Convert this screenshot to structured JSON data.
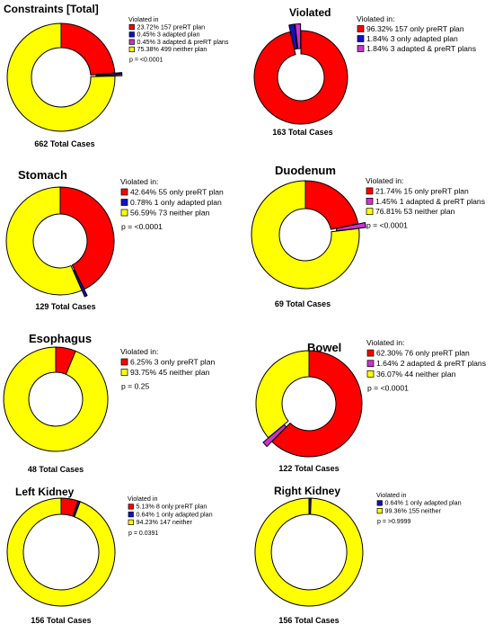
{
  "colors": {
    "red": "#ff0000",
    "blue": "#1010c8",
    "magenta": "#cc33cc",
    "yellow": "#ffff00",
    "stroke": "#000000"
  },
  "chart_data": [
    {
      "type": "pie",
      "title": "Constraints [Total]",
      "total_label": "662 Total Cases",
      "legend_title": "Violated in",
      "p_value": "p = <0.0001",
      "slices": [
        {
          "pct": 23.72,
          "pct_label": "23.72%",
          "text": "157 preRT plan",
          "color": "red",
          "explode": false
        },
        {
          "pct": 0.45,
          "pct_label": "0.45%",
          "text": "3 adapted plan",
          "color": "blue",
          "explode": true
        },
        {
          "pct": 0.45,
          "pct_label": "0.45%",
          "text": "3 adapted & preRT plans",
          "color": "magenta",
          "explode": true
        },
        {
          "pct": 75.38,
          "pct_label": "75.38%",
          "text": "499 neither plan",
          "color": "yellow",
          "explode": false
        }
      ]
    },
    {
      "type": "pie",
      "title": "Violated",
      "total_label": "163 Total Cases",
      "legend_title": "Violated in:",
      "p_value": "",
      "slices": [
        {
          "pct": 96.32,
          "pct_label": "96.32%",
          "text": "157 only preRT plan",
          "color": "red",
          "explode": false
        },
        {
          "pct": 1.84,
          "pct_label": "1.84%",
          "text": "3 only adapted plan",
          "color": "blue",
          "explode": true
        },
        {
          "pct": 1.84,
          "pct_label": "1.84%",
          "text": "3 adapted & preRT plans",
          "color": "magenta",
          "explode": true
        }
      ]
    },
    {
      "type": "pie",
      "title": "Stomach",
      "total_label": "129 Total Cases",
      "legend_title": "Violated in:",
      "p_value": "p = <0.0001",
      "slices": [
        {
          "pct": 42.64,
          "pct_label": "42.64%",
          "text": "55 only preRT plan",
          "color": "red",
          "explode": false
        },
        {
          "pct": 0.78,
          "pct_label": "0.78%",
          "text": "1 only adapted plan",
          "color": "blue",
          "explode": true
        },
        {
          "pct": 56.59,
          "pct_label": "56.59%",
          "text": "73 neither plan",
          "color": "yellow",
          "explode": false
        }
      ]
    },
    {
      "type": "pie",
      "title": "Duodenum",
      "total_label": "69 Total Cases",
      "legend_title": "Violated in:",
      "p_value": "p = <0.0001",
      "slices": [
        {
          "pct": 21.74,
          "pct_label": "21.74%",
          "text": "15 only preRT plan",
          "color": "red",
          "explode": false
        },
        {
          "pct": 1.45,
          "pct_label": "1.45%",
          "text": "1 adapted & preRT plans",
          "color": "magenta",
          "explode": true
        },
        {
          "pct": 76.81,
          "pct_label": "76.81%",
          "text": "53 neither plan",
          "color": "yellow",
          "explode": false
        }
      ]
    },
    {
      "type": "pie",
      "title": "Esophagus",
      "total_label": "48 Total Cases",
      "legend_title": "Violated in:",
      "p_value": "p = 0.25",
      "slices": [
        {
          "pct": 6.25,
          "pct_label": "6.25%",
          "text": "3 only preRT plan",
          "color": "red",
          "explode": false
        },
        {
          "pct": 93.75,
          "pct_label": "93.75%",
          "text": "45 neither plan",
          "color": "yellow",
          "explode": false
        }
      ]
    },
    {
      "type": "pie",
      "title": "Bowel",
      "total_label": "122 Total Cases",
      "legend_title": "Violated in:",
      "p_value": "p = <0.0001",
      "slices": [
        {
          "pct": 62.3,
          "pct_label": "62.30%",
          "text": "76 only preRT plan",
          "color": "red",
          "explode": false
        },
        {
          "pct": 1.64,
          "pct_label": "1.64%",
          "text": "2 adapted & preRT plans",
          "color": "magenta",
          "explode": true
        },
        {
          "pct": 36.07,
          "pct_label": "36.07%",
          "text": "44 neither plan",
          "color": "yellow",
          "explode": false
        }
      ]
    },
    {
      "type": "pie",
      "title": "Left Kidney",
      "total_label": "156 Total Cases",
      "legend_title": "Violated in",
      "p_value": "p = 0.0391",
      "slices": [
        {
          "pct": 5.13,
          "pct_label": "5.13%",
          "text": "8 only preRT plan",
          "color": "red",
          "explode": false
        },
        {
          "pct": 0.64,
          "pct_label": "0.64%",
          "text": "1 only adapted plan",
          "color": "blue",
          "explode": false
        },
        {
          "pct": 94.23,
          "pct_label": "94.23%",
          "text": "147 neither",
          "color": "yellow",
          "explode": false
        }
      ]
    },
    {
      "type": "pie",
      "title": "Right Kidney",
      "total_label": "156 Total Cases",
      "legend_title": "Violated in",
      "p_value": "p = >0.9999",
      "slices": [
        {
          "pct": 0.64,
          "pct_label": "0.64%",
          "text": "1 only adapted plan",
          "color": "blue",
          "explode": false
        },
        {
          "pct": 99.36,
          "pct_label": "99.36%",
          "text": "155 neither",
          "color": "yellow",
          "explode": false
        }
      ]
    }
  ]
}
